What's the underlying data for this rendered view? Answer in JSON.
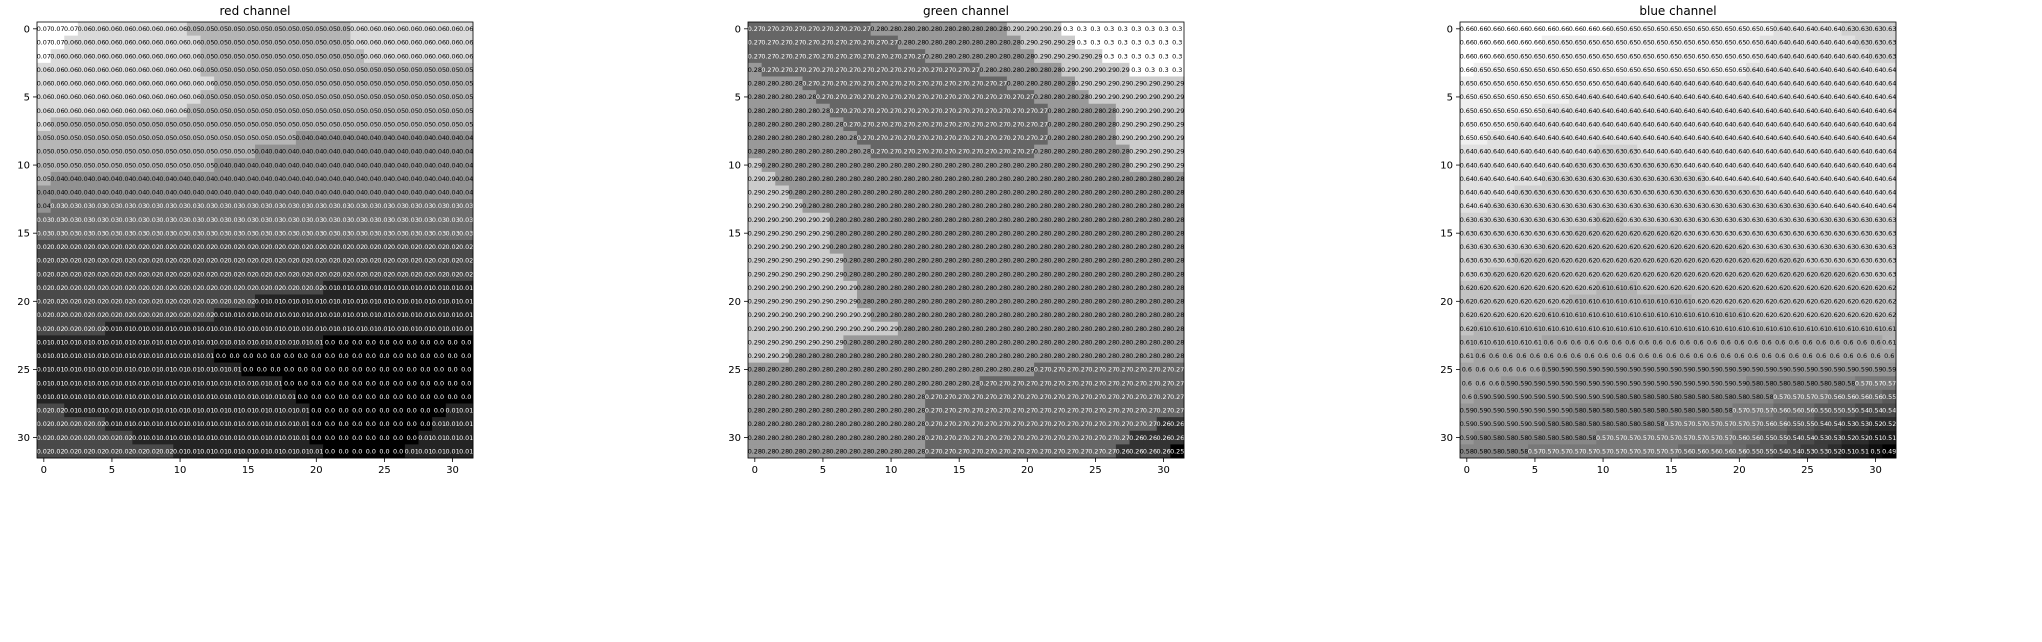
{
  "chart_data": [
    {
      "type": "heatmap",
      "title": "red channel",
      "xlabel": "",
      "ylabel": "",
      "rows": 32,
      "cols": 32,
      "x_ticks": [
        0,
        5,
        10,
        15,
        20,
        25,
        30
      ],
      "y_ticks": [
        0,
        5,
        10,
        15,
        20,
        25,
        30
      ],
      "colormap": "gray",
      "grid": false,
      "cell_annotations": true,
      "value_range": [
        0.0,
        0.07
      ],
      "values_note": "cell grid generated from row/column anchors below; numeric labels shown in every cell",
      "row_anchor_values": [
        {
          "row": 0,
          "values_by_col": [
            [
              0,
              0.07
            ],
            [
              5,
              0.06
            ],
            [
              16,
              0.05
            ],
            [
              21,
              0.05
            ],
            [
              24,
              0.06
            ],
            [
              31,
              0.06
            ]
          ]
        },
        {
          "row": 4,
          "values_by_col": [
            [
              0,
              0.06
            ],
            [
              10,
              0.06
            ],
            [
              14,
              0.05
            ],
            [
              31,
              0.05
            ]
          ]
        },
        {
          "row": 10,
          "values_by_col": [
            [
              0,
              0.05
            ],
            [
              25,
              0.04
            ],
            [
              31,
              0.04
            ]
          ]
        },
        {
          "row": 14,
          "values_by_col": [
            [
              0,
              0.03
            ],
            [
              20,
              0.03
            ],
            [
              31,
              0.03
            ]
          ]
        },
        {
          "row": 16,
          "values_by_col": [
            [
              0,
              0.02
            ],
            [
              31,
              0.02
            ]
          ]
        },
        {
          "row": 21,
          "values_by_col": [
            [
              0,
              0.02
            ],
            [
              25,
              0.01
            ],
            [
              31,
              0.01
            ]
          ]
        },
        {
          "row": 24,
          "values_by_col": [
            [
              0,
              0.01
            ],
            [
              24,
              0.0
            ],
            [
              31,
              0.0
            ]
          ]
        },
        {
          "row": 31,
          "values_by_col": [
            [
              0,
              0.02
            ],
            [
              18,
              0.01
            ],
            [
              22,
              0.0
            ],
            [
              31,
              0.01
            ]
          ]
        }
      ]
    },
    {
      "type": "heatmap",
      "title": "green channel",
      "xlabel": "",
      "ylabel": "",
      "rows": 32,
      "cols": 32,
      "x_ticks": [
        0,
        5,
        10,
        15,
        20,
        25,
        30
      ],
      "y_ticks": [
        0,
        5,
        10,
        15,
        20,
        25,
        30
      ],
      "colormap": "gray",
      "grid": false,
      "cell_annotations": true,
      "value_range": [
        0.25,
        0.3
      ],
      "row_anchor_values": [
        {
          "row": 0,
          "values_by_col": [
            [
              0,
              0.27
            ],
            [
              17,
              0.28
            ],
            [
              24,
              0.3
            ],
            [
              31,
              0.3
            ]
          ]
        },
        {
          "row": 6,
          "values_by_col": [
            [
              0,
              0.28
            ],
            [
              10,
              0.27
            ],
            [
              20,
              0.27
            ],
            [
              28,
              0.29
            ],
            [
              31,
              0.29
            ]
          ]
        },
        {
          "row": 14,
          "values_by_col": [
            [
              0,
              0.29
            ],
            [
              10,
              0.28
            ],
            [
              31,
              0.28
            ]
          ]
        },
        {
          "row": 22,
          "values_by_col": [
            [
              0,
              0.29
            ],
            [
              20,
              0.28
            ],
            [
              31,
              0.28
            ]
          ]
        },
        {
          "row": 27,
          "values_by_col": [
            [
              0,
              0.28
            ],
            [
              24,
              0.27
            ],
            [
              31,
              0.27
            ]
          ]
        },
        {
          "row": 31,
          "values_by_col": [
            [
              0,
              0.28
            ],
            [
              24,
              0.27
            ],
            [
              29,
              0.26
            ],
            [
              31,
              0.25
            ]
          ]
        }
      ]
    },
    {
      "type": "heatmap",
      "title": "blue channel",
      "xlabel": "",
      "ylabel": "",
      "rows": 32,
      "cols": 32,
      "x_ticks": [
        0,
        5,
        10,
        15,
        20,
        25,
        30
      ],
      "y_ticks": [
        0,
        5,
        10,
        15,
        20,
        25,
        30
      ],
      "colormap": "gray",
      "grid": false,
      "cell_annotations": true,
      "value_range": [
        0.49,
        0.66
      ],
      "row_anchor_values": [
        {
          "row": 0,
          "values_by_col": [
            [
              0,
              0.66
            ],
            [
              20,
              0.65
            ],
            [
              24,
              0.64
            ],
            [
              31,
              0.63
            ]
          ]
        },
        {
          "row": 6,
          "values_by_col": [
            [
              0,
              0.65
            ],
            [
              10,
              0.64
            ],
            [
              31,
              0.64
            ]
          ]
        },
        {
          "row": 11,
          "values_by_col": [
            [
              0,
              0.64
            ],
            [
              10,
              0.63
            ],
            [
              25,
              0.64
            ],
            [
              31,
              0.64
            ]
          ]
        },
        {
          "row": 16,
          "values_by_col": [
            [
              0,
              0.63
            ],
            [
              10,
              0.62
            ],
            [
              31,
              0.63
            ]
          ]
        },
        {
          "row": 21,
          "values_by_col": [
            [
              0,
              0.62
            ],
            [
              10,
              0.61
            ],
            [
              31,
              0.62
            ]
          ]
        },
        {
          "row": 25,
          "values_by_col": [
            [
              0,
              0.6
            ],
            [
              10,
              0.59
            ],
            [
              31,
              0.59
            ]
          ]
        },
        {
          "row": 29,
          "values_by_col": [
            [
              0,
              0.59
            ],
            [
              20,
              0.57
            ],
            [
              31,
              0.52
            ]
          ]
        },
        {
          "row": 31,
          "values_by_col": [
            [
              0,
              0.58
            ],
            [
              20,
              0.56
            ],
            [
              27,
              0.52
            ],
            [
              31,
              0.49
            ]
          ]
        }
      ]
    }
  ]
}
